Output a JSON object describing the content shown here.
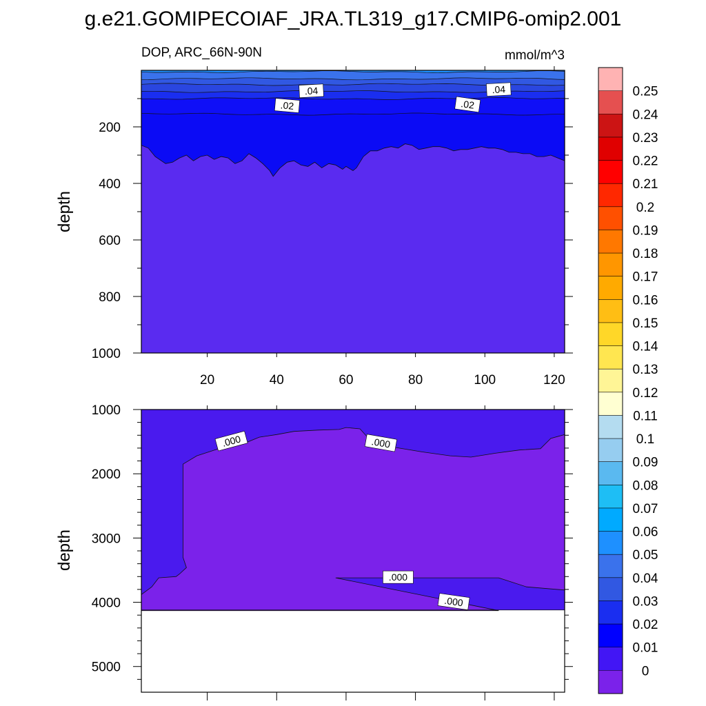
{
  "title": "g.e21.GOMIPECOIAF_JRA.TL319_g17.CMIP6-omip2.001",
  "variable_label": "DOP, ARC_66N-90N",
  "units_label": "mmol/m^3",
  "chart_data": [
    {
      "type": "heatmap",
      "panel": "upper",
      "ylabel": "depth",
      "xlabel": "",
      "xlim": [
        1,
        123
      ],
      "ylim": [
        1000,
        0
      ],
      "x_ticks": [
        "20",
        "40",
        "60",
        "80",
        "100",
        "120"
      ],
      "y_ticks": [
        "200",
        "400",
        "600",
        "800",
        "1000"
      ],
      "contour_labels": [
        ".04",
        ".04",
        ".02",
        ".02"
      ],
      "levels": {
        "depths": [
          5,
          30,
          50,
          75,
          100,
          155
        ],
        "colors": [
          "#1e90ff",
          "#3a72ec",
          "#3158e2",
          "#2a46e0",
          "#1a2ef0",
          "#0f0ff7"
        ]
      },
      "boundary_0_01": {
        "x": [
          1,
          3,
          5,
          8,
          10,
          12,
          14,
          16,
          18,
          20,
          22,
          24,
          26,
          28,
          30,
          32,
          34,
          36,
          38,
          39,
          41,
          43,
          45,
          47,
          49,
          51,
          53,
          55,
          57,
          59,
          60,
          62,
          63,
          65,
          67,
          69,
          71,
          73,
          75,
          77,
          79,
          81,
          83,
          85,
          87,
          89,
          91,
          93,
          95,
          97,
          99,
          101,
          103,
          105,
          107,
          109,
          111,
          113,
          115,
          117,
          119,
          121,
          123
        ],
        "y": [
          265,
          275,
          305,
          330,
          325,
          310,
          300,
          320,
          305,
          300,
          315,
          305,
          310,
          330,
          320,
          295,
          310,
          330,
          355,
          375,
          345,
          325,
          320,
          335,
          340,
          325,
          345,
          330,
          335,
          350,
          340,
          355,
          345,
          305,
          285,
          285,
          275,
          270,
          275,
          260,
          265,
          280,
          275,
          270,
          270,
          275,
          285,
          280,
          280,
          275,
          270,
          275,
          275,
          280,
          290,
          290,
          295,
          295,
          305,
          305,
          300,
          310,
          320
        ]
      }
    },
    {
      "type": "heatmap",
      "panel": "lower",
      "ylabel": "depth",
      "xlabel": "",
      "xlim": [
        1,
        123
      ],
      "ylim": [
        5400,
        1000
      ],
      "y_ticks": [
        "1000",
        "2000",
        "3000",
        "4000",
        "5000"
      ],
      "contour_labels": [
        ".000",
        ".000",
        ".000",
        ".000"
      ],
      "bottom_depth": 4120,
      "colors": {
        "above_zero": "#4a1aee",
        "zero": "#7b22ea",
        "missing": "#ffffff"
      },
      "zero_region": [
        [
          1,
          3880
        ],
        [
          4,
          3760
        ],
        [
          6,
          3620
        ],
        [
          11,
          3600
        ],
        [
          12,
          3560
        ],
        [
          14,
          3460
        ],
        [
          13,
          3300
        ],
        [
          13,
          2400
        ],
        [
          13,
          1850
        ],
        [
          17,
          1720
        ],
        [
          25,
          1580
        ],
        [
          30,
          1540
        ],
        [
          35,
          1430
        ],
        [
          40,
          1390
        ],
        [
          45,
          1340
        ],
        [
          52,
          1320
        ],
        [
          58,
          1310
        ],
        [
          60,
          1280
        ],
        [
          64,
          1300
        ],
        [
          66,
          1420
        ],
        [
          73,
          1580
        ],
        [
          82,
          1660
        ],
        [
          90,
          1720
        ],
        [
          96,
          1740
        ],
        [
          103,
          1680
        ],
        [
          110,
          1630
        ],
        [
          116,
          1610
        ],
        [
          119,
          1450
        ],
        [
          123,
          1390
        ],
        [
          123,
          3810
        ],
        [
          112,
          3760
        ],
        [
          104,
          3620
        ],
        [
          57,
          3620
        ],
        [
          104,
          4130
        ],
        [
          1,
          4130
        ]
      ]
    }
  ],
  "colorbar": {
    "labels": [
      "0.25",
      "0.24",
      "0.23",
      "0.22",
      "0.21",
      "0.2",
      "0.19",
      "0.18",
      "0.17",
      "0.16",
      "0.15",
      "0.14",
      "0.13",
      "0.12",
      "0.11",
      "0.1",
      "0.09",
      "0.08",
      "0.07",
      "0.06",
      "0.05",
      "0.04",
      "0.03",
      "0.02",
      "0.01",
      "0"
    ],
    "colors": [
      "#ffb3b3",
      "#e55050",
      "#cc1414",
      "#e00000",
      "#ff0000",
      "#ff2800",
      "#ff5000",
      "#ff7800",
      "#ff9600",
      "#ffaa00",
      "#ffbe14",
      "#ffd728",
      "#ffe650",
      "#fff596",
      "#ffffd2",
      "#b4dcf0",
      "#96cdf0",
      "#5ab9f0",
      "#1ebef5",
      "#00aaff",
      "#1e90ff",
      "#3a72ec",
      "#3158e2",
      "#1a2ef0",
      "#0000ff",
      "#4216f5",
      "#7b22ea"
    ]
  }
}
